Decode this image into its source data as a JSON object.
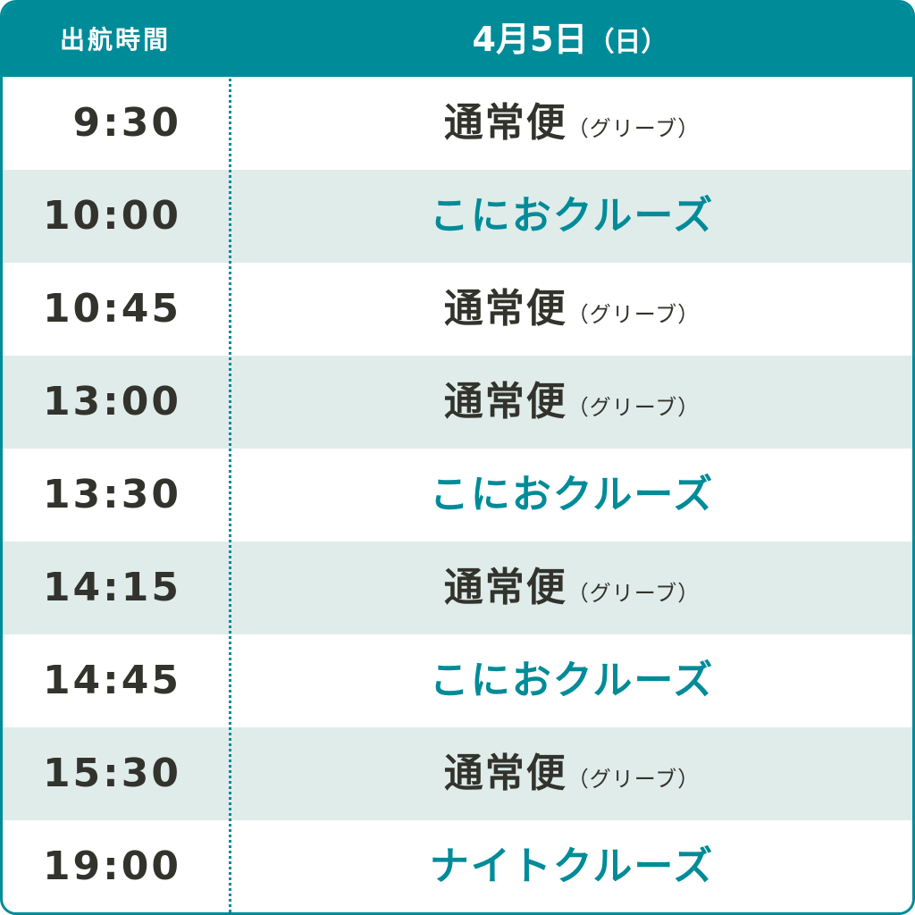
{
  "header": {
    "time_label": "出航時間",
    "date_label": "4月5日",
    "weekday_label": "（日）"
  },
  "colors": {
    "accent": "#008b98",
    "row_alt": "#dfecea",
    "text": "#33332d"
  },
  "rows": [
    {
      "time": "9:30",
      "service": "通常便",
      "note": "（グリーブ）",
      "type": "regular"
    },
    {
      "time": "10:00",
      "service": "こにおクルーズ",
      "note": "",
      "type": "cruise"
    },
    {
      "time": "10:45",
      "service": "通常便",
      "note": "（グリーブ）",
      "type": "regular"
    },
    {
      "time": "13:00",
      "service": "通常便",
      "note": "（グリーブ）",
      "type": "regular"
    },
    {
      "time": "13:30",
      "service": "こにおクルーズ",
      "note": "",
      "type": "cruise"
    },
    {
      "time": "14:15",
      "service": "通常便",
      "note": "（グリーブ）",
      "type": "regular"
    },
    {
      "time": "14:45",
      "service": "こにおクルーズ",
      "note": "",
      "type": "cruise"
    },
    {
      "time": "15:30",
      "service": "通常便",
      "note": "（グリーブ）",
      "type": "regular"
    },
    {
      "time": "19:00",
      "service": "ナイトクルーズ",
      "note": "",
      "type": "cruise"
    }
  ]
}
